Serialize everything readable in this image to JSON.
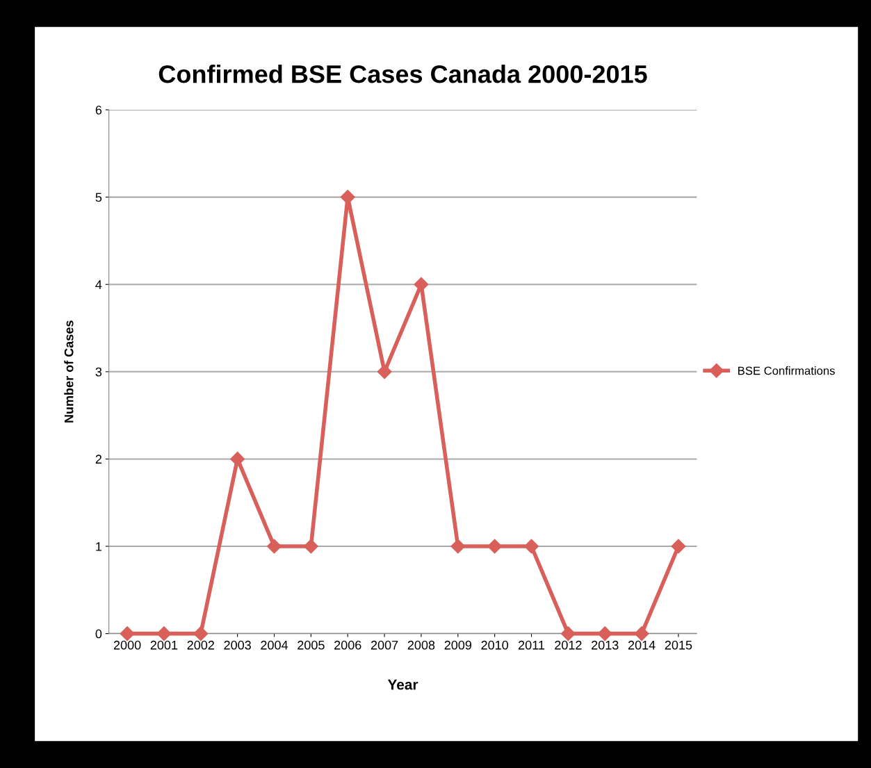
{
  "chart_data": {
    "type": "line",
    "title": "Confirmed BSE Cases Canada 2000-2015",
    "xlabel": "Year",
    "ylabel": "Number of Cases",
    "categories": [
      "2000",
      "2001",
      "2002",
      "2003",
      "2004",
      "2005",
      "2006",
      "2007",
      "2008",
      "2009",
      "2010",
      "2011",
      "2012",
      "2013",
      "2014",
      "2015"
    ],
    "series": [
      {
        "name": "BSE Confirmations",
        "color": "#d9605a",
        "values": [
          0,
          0,
          0,
          2,
          1,
          1,
          5,
          3,
          4,
          1,
          1,
          1,
          0,
          0,
          0,
          1
        ]
      }
    ],
    "ylim": [
      0,
      6
    ],
    "yticks": [
      0,
      1,
      2,
      3,
      4,
      5,
      6
    ],
    "grid": "y",
    "legend": "right",
    "marker": "diamond",
    "line_style": "solid"
  }
}
